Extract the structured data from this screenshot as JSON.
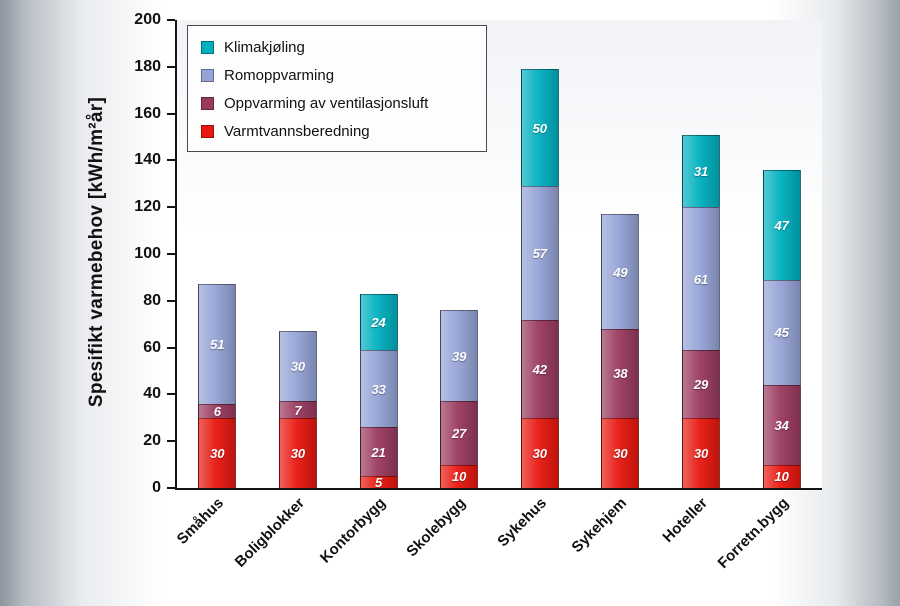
{
  "chart_data": {
    "type": "bar",
    "subtype": "stacked",
    "title": "",
    "ylabel": "Spesifikt varmebehov [kWh/m²år]",
    "xlabel": "",
    "ylim": [
      0,
      200
    ],
    "yticks": [
      0,
      20,
      40,
      60,
      80,
      100,
      120,
      140,
      160,
      180,
      200
    ],
    "grid": false,
    "legend_position": "top-left-inside",
    "categories": [
      "Småhus",
      "Boligblokker",
      "Kontorbygg",
      "Skolebygg",
      "Sykehus",
      "Sykehjem",
      "Hoteller",
      "Forretn.bygg"
    ],
    "series": [
      {
        "name": "Varmtvannsberedning",
        "color": "#e8170f",
        "values": [
          30,
          30,
          5,
          10,
          30,
          30,
          30,
          10
        ]
      },
      {
        "name": "Oppvarming av ventilasjonsluft",
        "color": "#9a3a5f",
        "values": [
          6,
          7,
          21,
          27,
          42,
          38,
          29,
          34
        ]
      },
      {
        "name": "Romoppvarming",
        "color": "#95a3d6",
        "values": [
          51,
          30,
          33,
          39,
          57,
          49,
          61,
          45
        ]
      },
      {
        "name": "Klimakjøling",
        "color": "#00b0bf",
        "values": [
          0,
          0,
          24,
          0,
          50,
          0,
          31,
          47
        ]
      }
    ],
    "legend_order": [
      "Klimakjøling",
      "Romoppvarming",
      "Oppvarming av ventilasjonsluft",
      "Varmtvannsberedning"
    ],
    "totals": [
      87,
      67,
      83,
      76,
      179,
      117,
      151,
      136
    ]
  }
}
